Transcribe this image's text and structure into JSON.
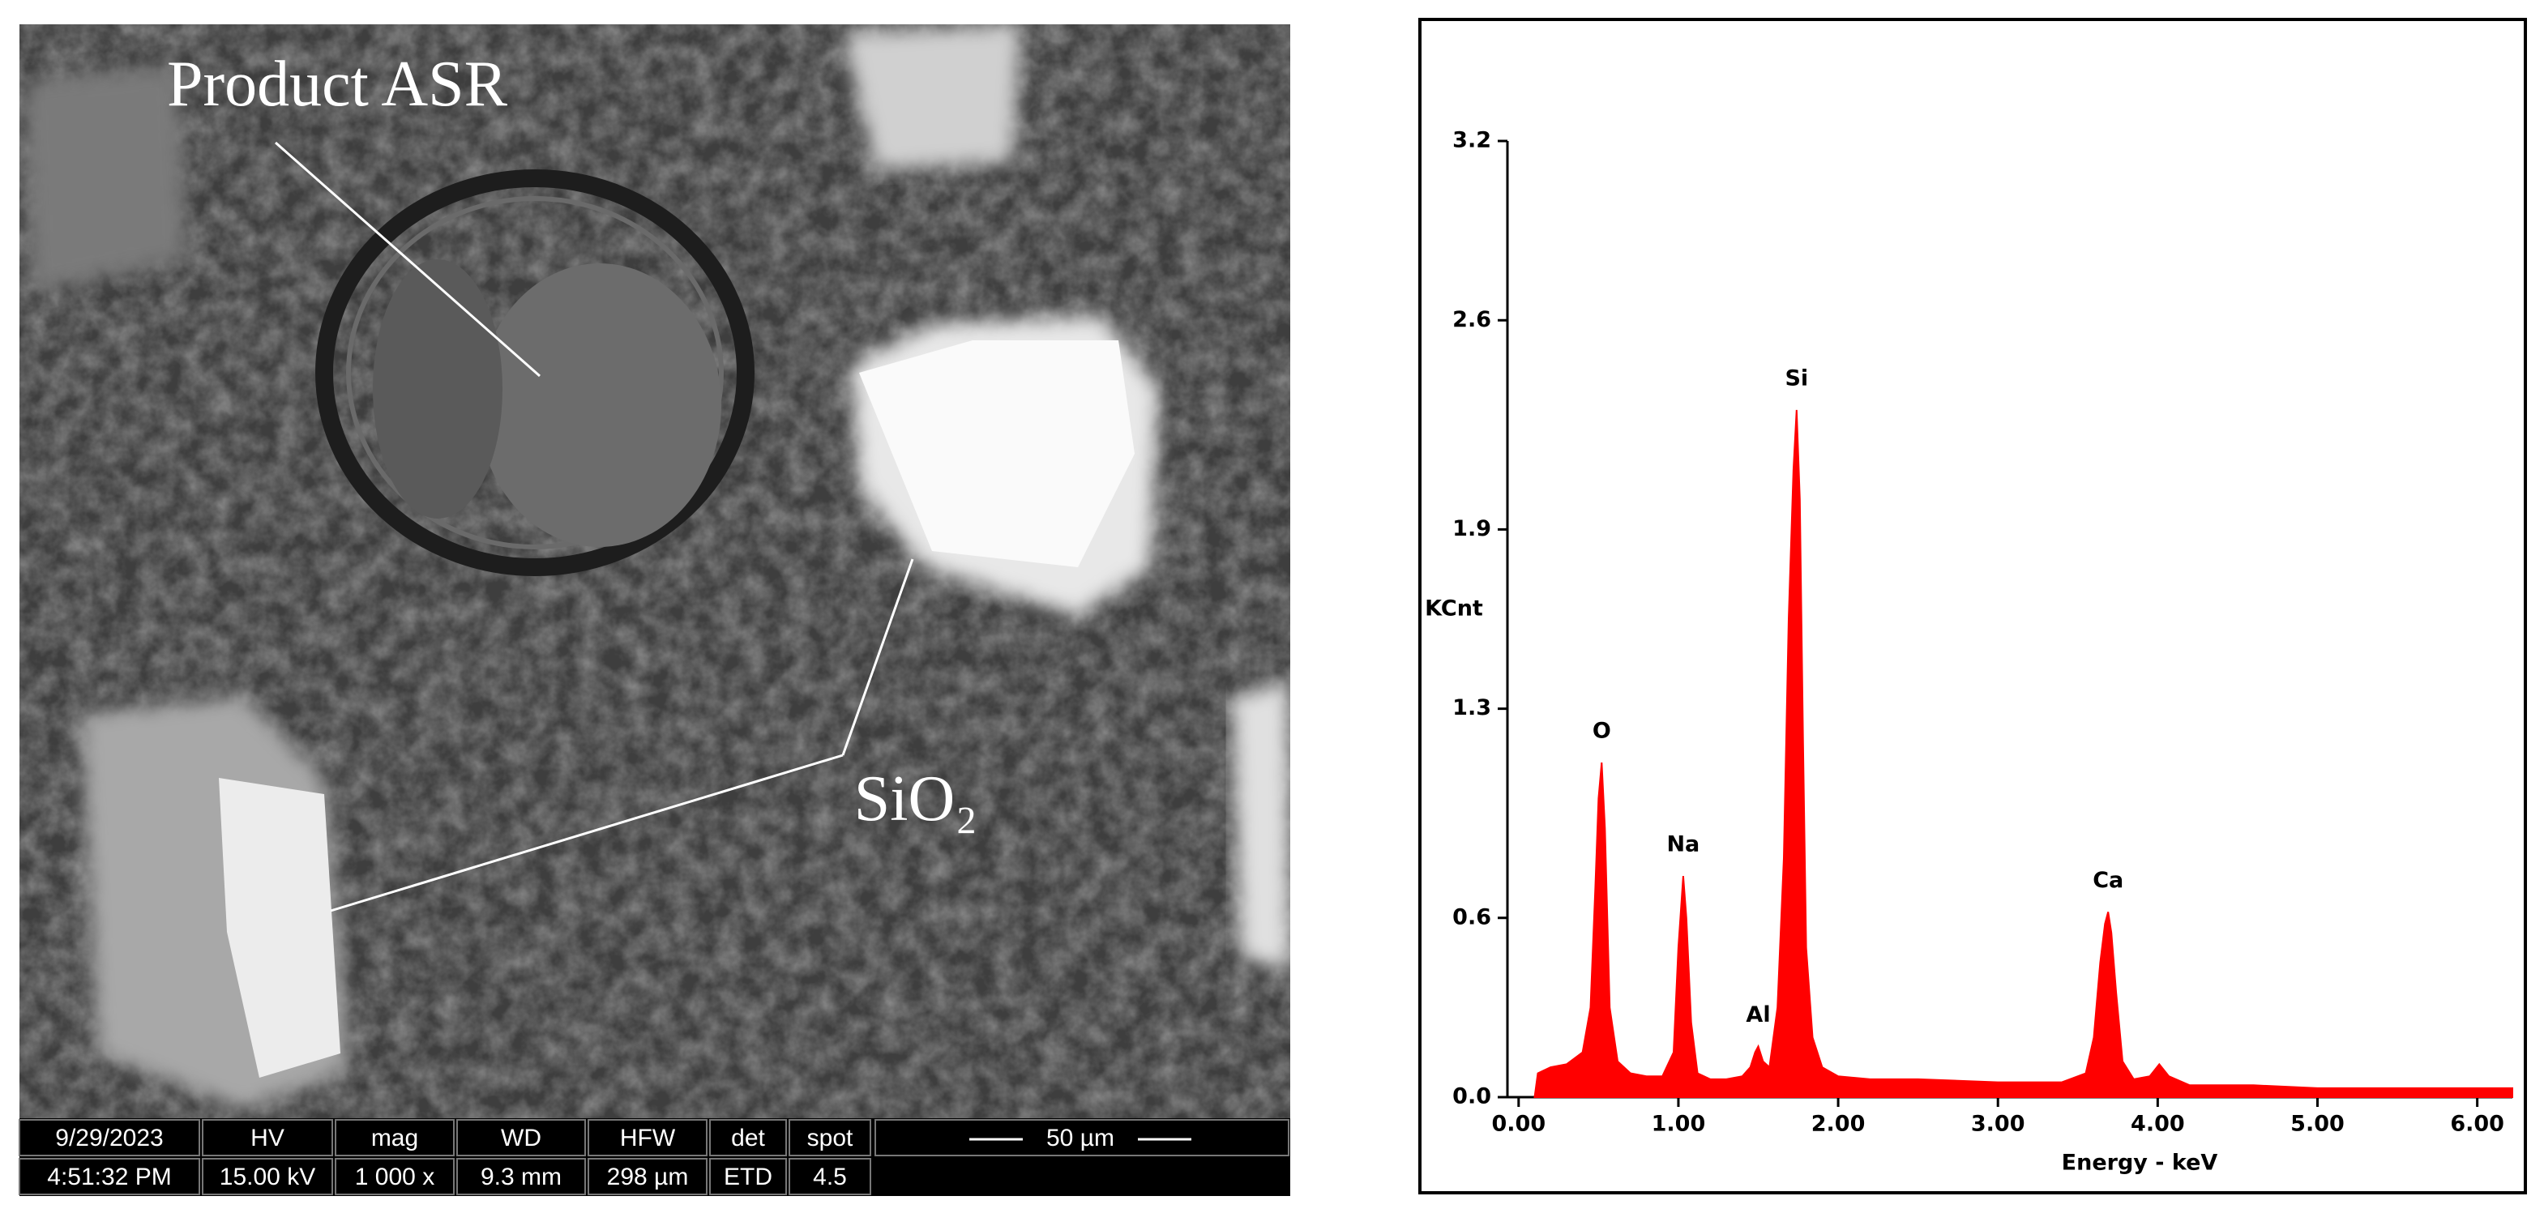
{
  "micrograph": {
    "labels": {
      "product": "Product ASR",
      "silica": "SiO₂"
    },
    "info_bar": {
      "headers": [
        "9/29/2023",
        "HV",
        "mag",
        "WD",
        "HFW",
        "det",
        "spot"
      ],
      "values": [
        "4:51:32 PM",
        "15.00 kV",
        "1 000 x",
        "9.3 mm",
        "298 µm",
        "ETD",
        "4.5"
      ],
      "scale_bar": "50 µm"
    }
  },
  "chart_data": {
    "type": "area",
    "x_label": "Energy - keV",
    "y_label": "KCnt",
    "color": "#ff0000",
    "y_label_color": "#ff0000",
    "x": [
      0.1,
      0.12,
      0.2,
      0.3,
      0.4,
      0.45,
      0.48,
      0.5,
      0.52,
      0.54,
      0.57,
      0.62,
      0.7,
      0.8,
      0.9,
      0.97,
      1.0,
      1.03,
      1.05,
      1.08,
      1.12,
      1.2,
      1.3,
      1.4,
      1.45,
      1.48,
      1.5,
      1.53,
      1.57,
      1.62,
      1.66,
      1.69,
      1.72,
      1.74,
      1.76,
      1.78,
      1.8,
      1.84,
      1.9,
      2.0,
      2.2,
      2.5,
      3.0,
      3.4,
      3.55,
      3.6,
      3.64,
      3.67,
      3.69,
      3.71,
      3.74,
      3.78,
      3.85,
      3.95,
      4.01,
      4.07,
      4.2,
      4.6,
      5.0,
      5.5,
      6.0,
      6.22
    ],
    "values": [
      0.0,
      0.08,
      0.1,
      0.11,
      0.15,
      0.3,
      0.7,
      1.0,
      1.12,
      0.9,
      0.3,
      0.12,
      0.08,
      0.07,
      0.07,
      0.15,
      0.5,
      0.74,
      0.6,
      0.25,
      0.08,
      0.06,
      0.06,
      0.07,
      0.1,
      0.15,
      0.17,
      0.12,
      0.1,
      0.3,
      0.8,
      1.6,
      2.1,
      2.3,
      2.0,
      1.2,
      0.5,
      0.2,
      0.1,
      0.07,
      0.06,
      0.06,
      0.05,
      0.05,
      0.08,
      0.2,
      0.45,
      0.58,
      0.62,
      0.55,
      0.35,
      0.12,
      0.06,
      0.07,
      0.11,
      0.07,
      0.04,
      0.04,
      0.03,
      0.03,
      0.03,
      0.03
    ],
    "peak_labels": [
      {
        "label": "O",
        "x": 0.52
      },
      {
        "label": "Na",
        "x": 1.03
      },
      {
        "label": "Al",
        "x": 1.5
      },
      {
        "label": "Si",
        "x": 1.74
      },
      {
        "label": "Ca",
        "x": 3.69
      }
    ],
    "xlim": [
      -0.07,
      6.22
    ],
    "xticks": [
      {
        "value": 0,
        "label": "0.00"
      },
      {
        "value": 1,
        "label": "1.00"
      },
      {
        "value": 2,
        "label": "2.00"
      },
      {
        "value": 3,
        "label": "3.00"
      },
      {
        "value": 4,
        "label": "4.00"
      },
      {
        "value": 5,
        "label": "5.00"
      },
      {
        "value": 6,
        "label": "6.00"
      }
    ],
    "ylim": [
      0,
      3.2
    ],
    "yticks": [
      {
        "value": 0,
        "label": "0.0"
      },
      0.6,
      1.3,
      1.9,
      2.6,
      3.2
    ]
  }
}
